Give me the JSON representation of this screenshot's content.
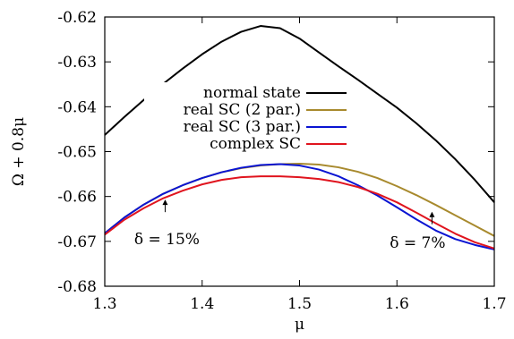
{
  "chart_data": {
    "type": "line",
    "xlabel": "μ",
    "ylabel": "Ω + 0.8μ",
    "xlim": [
      1.3,
      1.7
    ],
    "ylim": [
      -0.68,
      -0.62
    ],
    "xticks": [
      1.3,
      1.4,
      1.5,
      1.6,
      1.7
    ],
    "xtick_labels": [
      "1.3",
      "1.4",
      "1.5",
      "1.6",
      "1.7"
    ],
    "yticks": [
      -0.68,
      -0.67,
      -0.66,
      -0.65,
      -0.64,
      -0.63,
      -0.62
    ],
    "ytick_labels": [
      "-0.68",
      "-0.67",
      "-0.66",
      "-0.65",
      "-0.64",
      "-0.63",
      "-0.62"
    ],
    "grid": false,
    "legend_position": "upper-right",
    "series": [
      {
        "name": "normal state",
        "color": "#000000",
        "x": [
          1.3,
          1.32,
          1.34,
          1.36,
          1.38,
          1.4,
          1.42,
          1.44,
          1.46,
          1.48,
          1.5,
          1.52,
          1.54,
          1.56,
          1.58,
          1.6,
          1.62,
          1.64,
          1.66,
          1.68,
          1.7
        ],
        "y": [
          -0.6463,
          -0.6423,
          -0.6385,
          -0.6349,
          -0.6315,
          -0.6283,
          -0.6255,
          -0.6233,
          -0.622,
          -0.6225,
          -0.6248,
          -0.6279,
          -0.631,
          -0.634,
          -0.6371,
          -0.6402,
          -0.6437,
          -0.6475,
          -0.6517,
          -0.6563,
          -0.6613
        ]
      },
      {
        "name": "real SC (2 par.)",
        "color": "#a88a2e",
        "x": [
          1.3,
          1.32,
          1.34,
          1.36,
          1.38,
          1.4,
          1.42,
          1.44,
          1.46,
          1.48,
          1.5,
          1.52,
          1.54,
          1.56,
          1.58,
          1.6,
          1.62,
          1.64,
          1.66,
          1.68,
          1.7
        ],
        "y": [
          -0.6682,
          -0.6647,
          -0.6618,
          -0.6594,
          -0.6575,
          -0.6559,
          -0.6546,
          -0.6537,
          -0.6531,
          -0.6528,
          -0.6527,
          -0.6529,
          -0.6535,
          -0.6545,
          -0.6559,
          -0.6577,
          -0.6597,
          -0.6619,
          -0.6642,
          -0.6665,
          -0.6688
        ]
      },
      {
        "name": "real SC (3 par.)",
        "color": "#0a14d2",
        "x": [
          1.3,
          1.32,
          1.34,
          1.36,
          1.38,
          1.4,
          1.42,
          1.44,
          1.46,
          1.48,
          1.5,
          1.52,
          1.54,
          1.56,
          1.58,
          1.6,
          1.62,
          1.64,
          1.66,
          1.68,
          1.7
        ],
        "y": [
          -0.6682,
          -0.6647,
          -0.6618,
          -0.6594,
          -0.6575,
          -0.6559,
          -0.6546,
          -0.6536,
          -0.653,
          -0.6528,
          -0.6531,
          -0.654,
          -0.6555,
          -0.6575,
          -0.6598,
          -0.6624,
          -0.6651,
          -0.6676,
          -0.6695,
          -0.6708,
          -0.6718
        ]
      },
      {
        "name": "complex SC",
        "color": "#e0141e",
        "x": [
          1.3,
          1.32,
          1.34,
          1.36,
          1.38,
          1.4,
          1.42,
          1.44,
          1.46,
          1.48,
          1.5,
          1.52,
          1.54,
          1.56,
          1.58,
          1.6,
          1.62,
          1.64,
          1.66,
          1.68,
          1.7
        ],
        "y": [
          -0.6685,
          -0.6652,
          -0.6626,
          -0.6604,
          -0.6587,
          -0.6573,
          -0.6563,
          -0.6557,
          -0.6555,
          -0.6555,
          -0.6557,
          -0.6561,
          -0.6568,
          -0.6579,
          -0.6594,
          -0.6613,
          -0.6636,
          -0.666,
          -0.6683,
          -0.6702,
          -0.6716
        ]
      }
    ],
    "annotations": [
      {
        "text": "δ = 15%",
        "x": 1.362,
        "y": -0.6603
      },
      {
        "text": "δ = 7%",
        "x": 1.636,
        "y": -0.663
      }
    ]
  }
}
